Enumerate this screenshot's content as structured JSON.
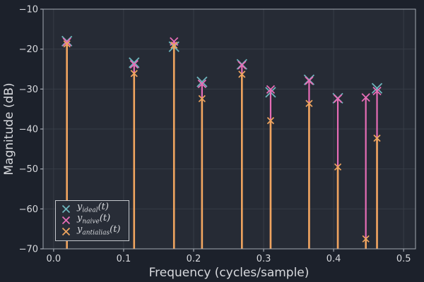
{
  "theme": {
    "figure_bg": "#1c212b",
    "axes_bg": "#262b35",
    "grid": "#373d47",
    "spine": "#a3a9b2",
    "text": "#d7d9dd",
    "legend_bg": "#282d37",
    "legend_border": "#c6c9ce"
  },
  "chart_data": {
    "type": "stem",
    "title": "",
    "xlabel": "Frequency (cycles/sample)",
    "ylabel": "Magnitude (dB)",
    "xlim": [
      -0.015,
      0.517
    ],
    "ylim": [
      -70,
      -10
    ],
    "baseline": -70,
    "grid": true,
    "legend_position": "lower-left",
    "x_ticks": [
      0,
      0.1,
      0.2,
      0.3,
      0.4,
      0.5
    ],
    "x_tick_labels": [
      "0.0",
      "0.1",
      "0.2",
      "0.3",
      "0.4",
      "0.5"
    ],
    "y_ticks": [
      -10,
      -20,
      -30,
      -40,
      -50,
      -60,
      -70
    ],
    "y_tick_labels": [
      "−10",
      "−20",
      "−30",
      "−40",
      "−50",
      "−60",
      "−70"
    ],
    "series": [
      {
        "name": "ideal",
        "legend": {
          "base": "y",
          "sub": "ideal",
          "rest": "(t)"
        },
        "color": "#6db6bd",
        "marker": "x",
        "marker_half": 7,
        "marker_stroke": 1.8,
        "stem_width": 1.8,
        "points": [
          [
            0.019,
            -18.0
          ],
          [
            0.115,
            -23.4
          ],
          [
            0.172,
            -19.4
          ],
          [
            0.212,
            -28.2
          ],
          [
            0.269,
            -23.8
          ],
          [
            0.31,
            -30.8
          ],
          [
            0.365,
            -27.7
          ],
          [
            0.406,
            -32.3
          ],
          [
            0.462,
            -29.8
          ]
        ]
      },
      {
        "name": "naive",
        "legend": {
          "base": "y",
          "sub": "naive",
          "rest": "(t)"
        },
        "color": "#e76db7",
        "marker": "x",
        "marker_half": 5.5,
        "marker_stroke": 1.8,
        "stem_width": 2.2,
        "points": [
          [
            0.019,
            -18.2
          ],
          [
            0.115,
            -23.8
          ],
          [
            0.172,
            -18.1
          ],
          [
            0.212,
            -28.7
          ],
          [
            0.269,
            -24.0
          ],
          [
            0.31,
            -30.1
          ],
          [
            0.365,
            -27.9
          ],
          [
            0.406,
            -32.4
          ],
          [
            0.446,
            -32.1
          ],
          [
            0.462,
            -30.5
          ]
        ]
      },
      {
        "name": "antialias",
        "legend": {
          "base": "y",
          "sub": "antialias",
          "rest": "(t)"
        },
        "color": "#f0a55f",
        "marker": "x",
        "marker_half": 4.5,
        "marker_stroke": 1.7,
        "stem_width": 2.6,
        "points": [
          [
            0.019,
            -18.7
          ],
          [
            0.115,
            -26.1
          ],
          [
            0.172,
            -19.0
          ],
          [
            0.212,
            -32.4
          ],
          [
            0.269,
            -26.3
          ],
          [
            0.31,
            -37.9
          ],
          [
            0.365,
            -33.6
          ],
          [
            0.406,
            -49.5
          ],
          [
            0.446,
            -67.5
          ],
          [
            0.462,
            -42.3
          ]
        ]
      }
    ]
  }
}
